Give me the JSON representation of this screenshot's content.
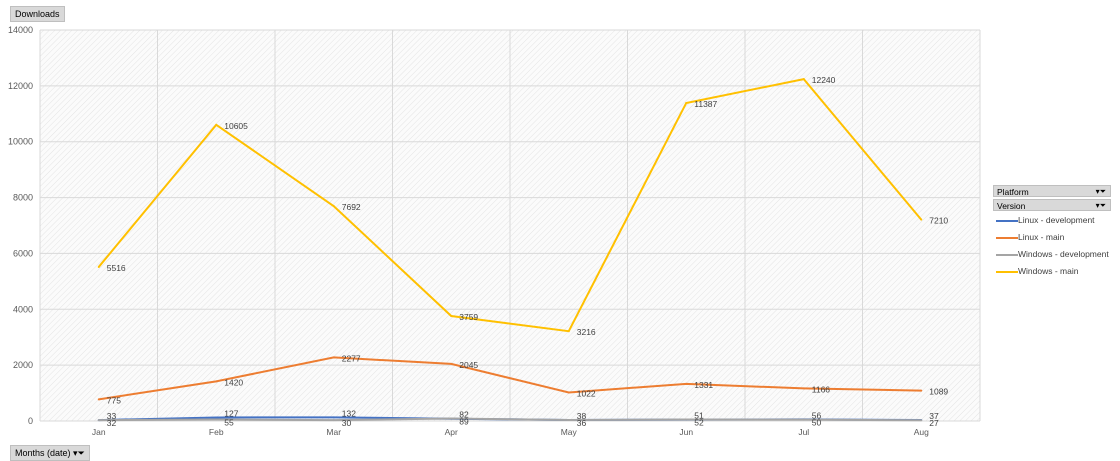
{
  "buttons": {
    "value_field": "Downloads",
    "axis_field": "Months (date)",
    "axis_field_icon": "dropdown-filter-icon"
  },
  "legend": {
    "headers": [
      {
        "label": "Platform",
        "icon": "filter-dropdown-icon"
      },
      {
        "label": "Version",
        "icon": "filter-dropdown-icon"
      }
    ]
  },
  "chart_data": {
    "type": "line",
    "categories": [
      "Jan",
      "Feb",
      "Mar",
      "Apr",
      "May",
      "Jun",
      "Jul",
      "Aug"
    ],
    "ylim": [
      0,
      14000
    ],
    "yticks": [
      0,
      2000,
      4000,
      6000,
      8000,
      10000,
      12000,
      14000
    ],
    "grid": true,
    "legend_position": "right",
    "series": [
      {
        "name": "Linux - development",
        "color": "#4472c4",
        "values": [
          33,
          127,
          132,
          82,
          38,
          51,
          56,
          37
        ]
      },
      {
        "name": "Linux - main",
        "color": "#ed7d31",
        "values": [
          775,
          1420,
          2277,
          2045,
          1022,
          1331,
          1166,
          1089
        ]
      },
      {
        "name": "Windows - development",
        "color": "#a5a5a5",
        "values": [
          32,
          55,
          30,
          89,
          36,
          52,
          50,
          27
        ]
      },
      {
        "name": "Windows - main",
        "color": "#ffc000",
        "values": [
          5516,
          10605,
          7692,
          3759,
          3216,
          11387,
          12240,
          7210
        ]
      }
    ]
  }
}
